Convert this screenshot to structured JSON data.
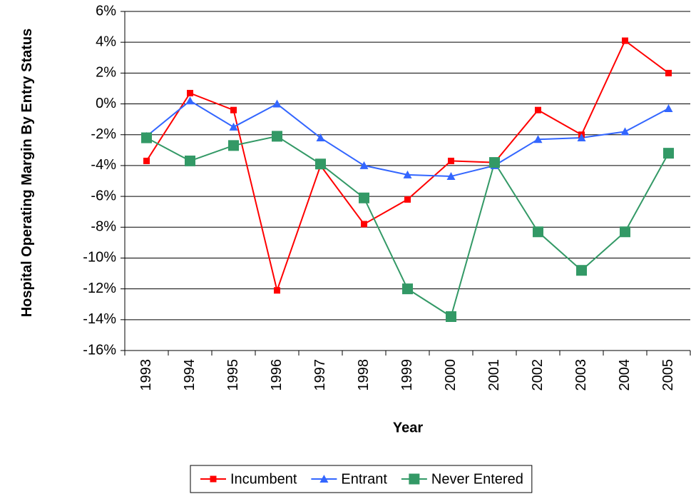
{
  "chart_data": {
    "type": "line",
    "xlabel": "Year",
    "ylabel": "Hospital Operating Margin By Entry Status",
    "categories": [
      "1993",
      "1994",
      "1995",
      "1996",
      "1997",
      "1998",
      "1999",
      "2000",
      "2001",
      "2002",
      "2003",
      "2004",
      "2005"
    ],
    "series": [
      {
        "name": "Incumbent",
        "color": "#ff0000",
        "marker": "square-small",
        "values": [
          -3.7,
          0.7,
          -0.4,
          -12.1,
          -4.0,
          -7.8,
          -6.2,
          -3.7,
          -3.8,
          -0.4,
          -2.0,
          4.1,
          2.0
        ]
      },
      {
        "name": "Entrant",
        "color": "#3366ff",
        "marker": "triangle",
        "values": [
          -2.1,
          0.2,
          -1.5,
          0.0,
          -2.2,
          -4.0,
          -4.6,
          -4.7,
          -4.0,
          -2.3,
          -2.2,
          -1.8,
          -0.3
        ]
      },
      {
        "name": "Never Entered",
        "color": "#339966",
        "marker": "square",
        "values": [
          -2.2,
          -3.7,
          -2.7,
          -2.1,
          -3.9,
          -6.1,
          -12.0,
          -13.8,
          -3.8,
          -8.3,
          -10.8,
          -8.3,
          -3.2
        ]
      }
    ],
    "ylim": [
      -16,
      6
    ],
    "yticks": [
      {
        "value": -16,
        "label": "-16%"
      },
      {
        "value": -14,
        "label": "-14%"
      },
      {
        "value": -12,
        "label": "-12%"
      },
      {
        "value": -10,
        "label": "-10%"
      },
      {
        "value": -8,
        "label": "-8%"
      },
      {
        "value": -6,
        "label": "-6%"
      },
      {
        "value": -4,
        "label": "-4%"
      },
      {
        "value": -2,
        "label": "-2%"
      },
      {
        "value": 0,
        "label": "0%"
      },
      {
        "value": 2,
        "label": "2%"
      },
      {
        "value": 4,
        "label": "4%"
      },
      {
        "value": 6,
        "label": "6%"
      }
    ],
    "grid": true,
    "legend": "bottom"
  }
}
